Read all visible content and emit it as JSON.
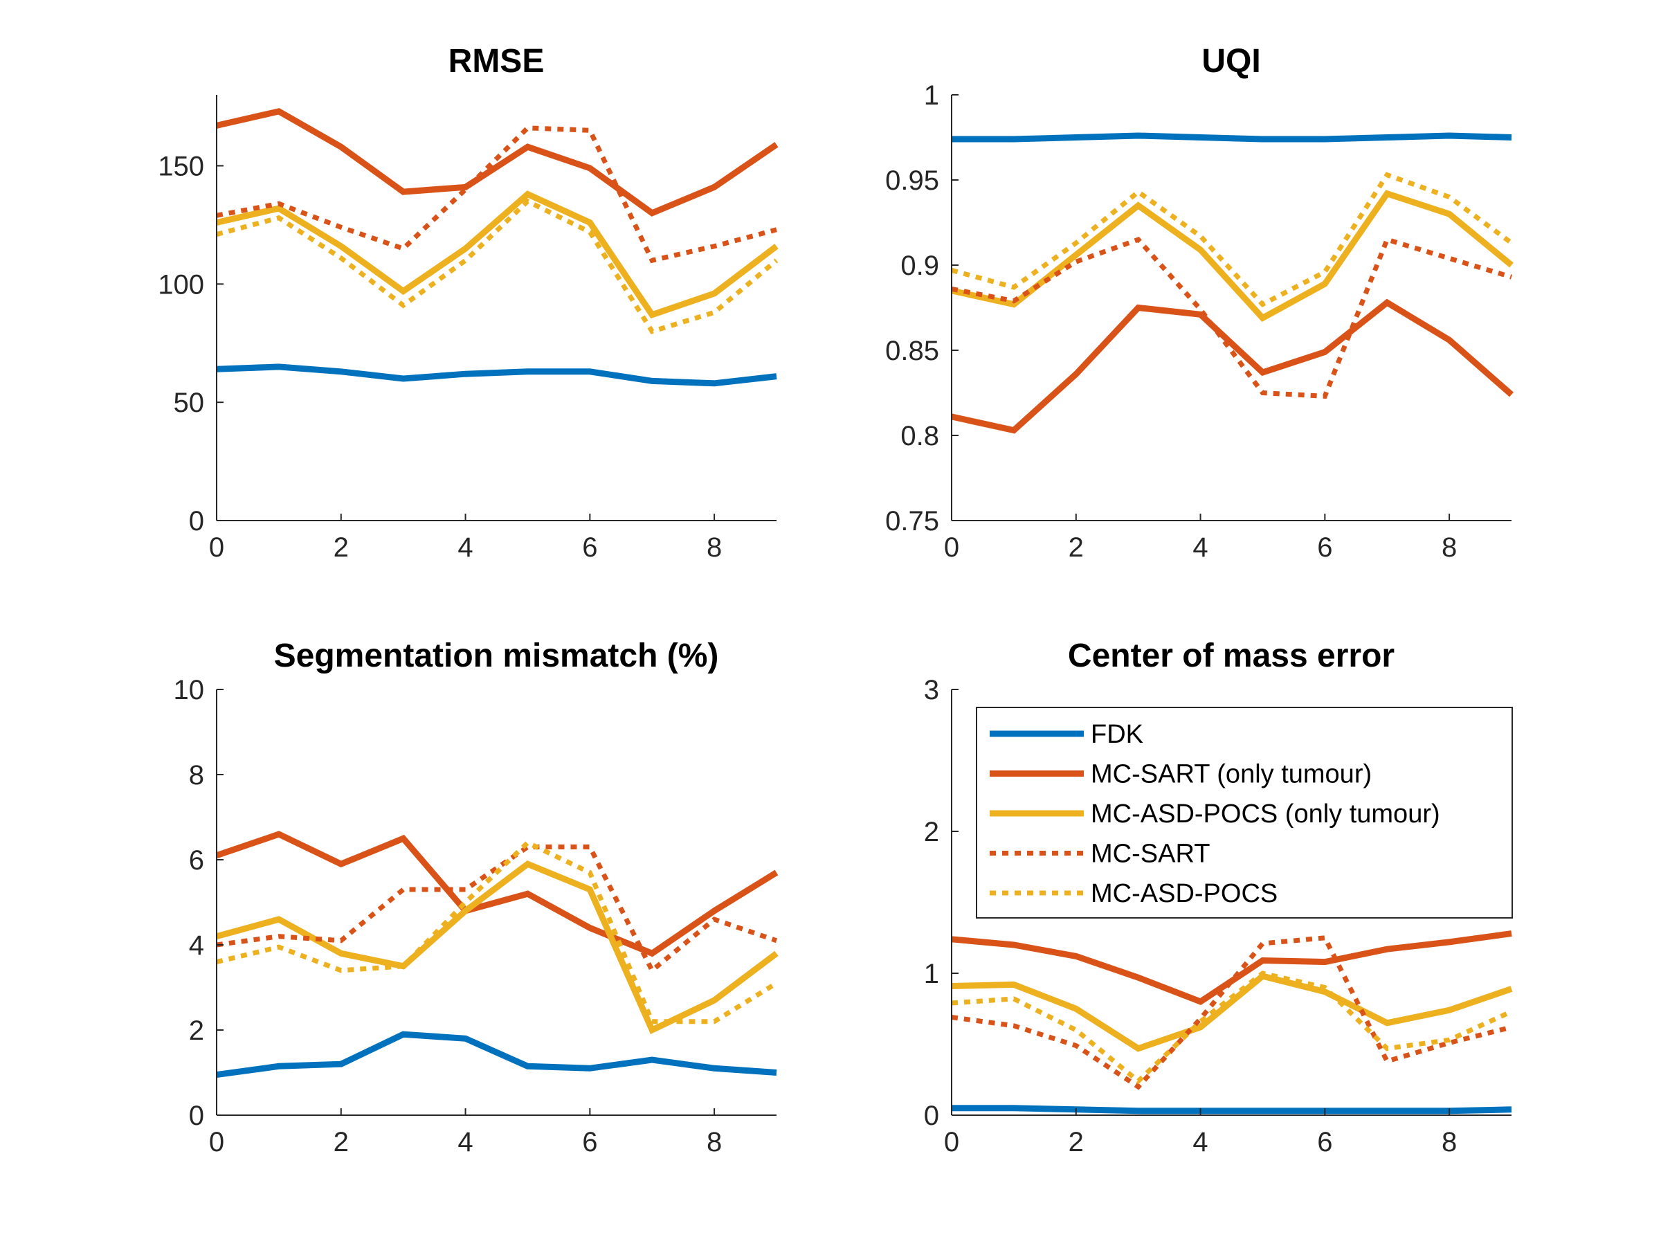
{
  "series_styles": [
    {
      "name": "FDK",
      "color": "#0072BD",
      "dash": "solid"
    },
    {
      "name": "MC-SART (only tumour)",
      "color": "#D95319",
      "dash": "solid"
    },
    {
      "name": "MC-ASD-POCS (only tumour)",
      "color": "#EDB120",
      "dash": "solid"
    },
    {
      "name": "MC-SART",
      "color": "#D95319",
      "dash": "dotted"
    },
    {
      "name": "MC-ASD-POCS",
      "color": "#EDB120",
      "dash": "dotted"
    }
  ],
  "chart_data": [
    {
      "type": "line",
      "title": "RMSE",
      "xlabel": "",
      "ylabel": "",
      "x": [
        0,
        1,
        2,
        3,
        4,
        5,
        6,
        7,
        8,
        9
      ],
      "xlim": [
        0,
        9
      ],
      "ylim": [
        0,
        180
      ],
      "xticks": [
        0,
        2,
        4,
        6,
        8
      ],
      "yticks": [
        0,
        50,
        100,
        150
      ],
      "yticklabels": [
        "0",
        "50",
        "100",
        "150"
      ],
      "grid": false,
      "series": [
        {
          "name": "FDK",
          "values": [
            64,
            65,
            63,
            60,
            62,
            63,
            63,
            59,
            58,
            61
          ]
        },
        {
          "name": "MC-SART (only tumour)",
          "values": [
            167,
            173,
            158,
            139,
            141,
            158,
            149,
            130,
            141,
            159
          ]
        },
        {
          "name": "MC-ASD-POCS (only tumour)",
          "values": [
            126,
            132,
            116,
            97,
            115,
            138,
            126,
            87,
            96,
            116
          ]
        },
        {
          "name": "MC-SART",
          "values": [
            129,
            134,
            124,
            115,
            140,
            166,
            165,
            110,
            116,
            123
          ]
        },
        {
          "name": "MC-ASD-POCS",
          "values": [
            121,
            128,
            111,
            91,
            110,
            135,
            122,
            80,
            88,
            110
          ]
        }
      ]
    },
    {
      "type": "line",
      "title": "UQI",
      "xlabel": "",
      "ylabel": "",
      "x": [
        0,
        1,
        2,
        3,
        4,
        5,
        6,
        7,
        8,
        9
      ],
      "xlim": [
        0,
        9
      ],
      "ylim": [
        0.75,
        1
      ],
      "xticks": [
        0,
        2,
        4,
        6,
        8
      ],
      "yticks": [
        0.75,
        0.8,
        0.85,
        0.9,
        0.95,
        1
      ],
      "yticklabels": [
        "0.75",
        "0.8",
        "0.85",
        "0.9",
        "0.95",
        "1"
      ],
      "grid": false,
      "series": [
        {
          "name": "FDK",
          "values": [
            0.974,
            0.974,
            0.975,
            0.976,
            0.975,
            0.974,
            0.974,
            0.975,
            0.976,
            0.975
          ]
        },
        {
          "name": "MC-SART (only tumour)",
          "values": [
            0.811,
            0.803,
            0.836,
            0.875,
            0.871,
            0.837,
            0.849,
            0.878,
            0.856,
            0.824
          ]
        },
        {
          "name": "MC-ASD-POCS (only tumour)",
          "values": [
            0.885,
            0.877,
            0.906,
            0.935,
            0.909,
            0.869,
            0.889,
            0.942,
            0.93,
            0.9
          ]
        },
        {
          "name": "MC-SART",
          "values": [
            0.886,
            0.879,
            0.902,
            0.915,
            0.874,
            0.825,
            0.823,
            0.915,
            0.904,
            0.893
          ]
        },
        {
          "name": "MC-ASD-POCS",
          "values": [
            0.897,
            0.887,
            0.913,
            0.943,
            0.917,
            0.877,
            0.896,
            0.953,
            0.94,
            0.913
          ]
        }
      ]
    },
    {
      "type": "line",
      "title": "Segmentation mismatch (%)",
      "xlabel": "",
      "ylabel": "",
      "x": [
        0,
        1,
        2,
        3,
        4,
        5,
        6,
        7,
        8,
        9
      ],
      "xlim": [
        0,
        9
      ],
      "ylim": [
        0,
        10
      ],
      "xticks": [
        0,
        2,
        4,
        6,
        8
      ],
      "yticks": [
        0,
        2,
        4,
        6,
        8,
        10
      ],
      "yticklabels": [
        "0",
        "2",
        "4",
        "6",
        "8",
        "10"
      ],
      "grid": false,
      "series": [
        {
          "name": "FDK",
          "values": [
            0.95,
            1.15,
            1.2,
            1.9,
            1.8,
            1.15,
            1.1,
            1.3,
            1.1,
            1.0
          ]
        },
        {
          "name": "MC-SART (only tumour)",
          "values": [
            6.1,
            6.6,
            5.9,
            6.5,
            4.8,
            5.2,
            4.4,
            3.8,
            4.8,
            5.7
          ]
        },
        {
          "name": "MC-ASD-POCS (only tumour)",
          "values": [
            4.2,
            4.6,
            3.8,
            3.5,
            4.8,
            5.9,
            5.3,
            2.0,
            2.7,
            3.8
          ]
        },
        {
          "name": "MC-SART",
          "values": [
            4.0,
            4.2,
            4.1,
            5.3,
            5.3,
            6.3,
            6.3,
            3.4,
            4.6,
            4.1
          ]
        },
        {
          "name": "MC-ASD-POCS",
          "values": [
            3.6,
            3.95,
            3.4,
            3.5,
            5.0,
            6.4,
            5.7,
            2.2,
            2.2,
            3.1
          ]
        }
      ]
    },
    {
      "type": "line",
      "title": "Center of mass error",
      "xlabel": "",
      "ylabel": "",
      "x": [
        0,
        1,
        2,
        3,
        4,
        5,
        6,
        7,
        8,
        9
      ],
      "xlim": [
        0,
        9
      ],
      "ylim": [
        0,
        3
      ],
      "xticks": [
        0,
        2,
        4,
        6,
        8
      ],
      "yticks": [
        0,
        1,
        2,
        3
      ],
      "yticklabels": [
        "0",
        "1",
        "2",
        "3"
      ],
      "grid": false,
      "legend": {
        "placement": "top-right",
        "entries": [
          "FDK",
          "MC-SART (only tumour)",
          "MC-ASD-POCS (only tumour)",
          "MC-SART",
          "MC-ASD-POCS"
        ]
      },
      "series": [
        {
          "name": "FDK",
          "values": [
            0.05,
            0.05,
            0.04,
            0.03,
            0.03,
            0.03,
            0.03,
            0.03,
            0.03,
            0.04
          ]
        },
        {
          "name": "MC-SART (only tumour)",
          "values": [
            1.24,
            1.2,
            1.12,
            0.97,
            0.8,
            1.09,
            1.08,
            1.17,
            1.22,
            1.28
          ]
        },
        {
          "name": "MC-ASD-POCS (only tumour)",
          "values": [
            0.91,
            0.92,
            0.75,
            0.47,
            0.62,
            0.98,
            0.87,
            0.65,
            0.74,
            0.89
          ]
        },
        {
          "name": "MC-SART",
          "values": [
            0.69,
            0.63,
            0.49,
            0.2,
            0.68,
            1.21,
            1.25,
            0.38,
            0.51,
            0.62
          ]
        },
        {
          "name": "MC-ASD-POCS",
          "values": [
            0.79,
            0.82,
            0.6,
            0.24,
            0.66,
            1.0,
            0.9,
            0.47,
            0.53,
            0.73
          ]
        }
      ]
    }
  ]
}
